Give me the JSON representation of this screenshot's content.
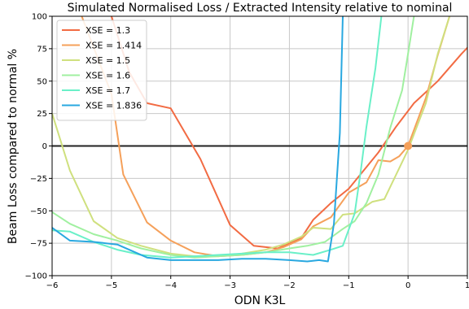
{
  "chart_data": {
    "type": "line",
    "title": "Simulated Normalised Loss / Extracted Intensity relative to nominal",
    "xlabel": "ODN K3L",
    "ylabel": "Beam Loss compared to normal %",
    "xlim": [
      -6,
      1
    ],
    "ylim": [
      -100,
      100
    ],
    "x_ticks": [
      -6,
      -5,
      -4,
      -3,
      -2,
      -1,
      0,
      1
    ],
    "x_tick_labels": [
      "−6",
      "−5",
      "−4",
      "−3",
      "−2",
      "−1",
      "0",
      "1"
    ],
    "y_ticks": [
      -100,
      -75,
      -50,
      -25,
      0,
      25,
      50,
      75,
      100
    ],
    "y_tick_labels": [
      "−100",
      "−75",
      "−50",
      "−25",
      "0",
      "25",
      "50",
      "75",
      "100"
    ],
    "grid": true,
    "legend_position": "top-left",
    "zero_line": 0,
    "marker": {
      "x": 0,
      "y": 0,
      "color": "#f5a05a"
    },
    "series": [
      {
        "name": "XSE = 1.3",
        "color": "#f26b43",
        "points": [
          [
            -5.0,
            100
          ],
          [
            -4.7,
            57
          ],
          [
            -4.4,
            33
          ],
          [
            -4.0,
            29
          ],
          [
            -3.5,
            -10
          ],
          [
            -3.0,
            -61
          ],
          [
            -2.6,
            -77
          ],
          [
            -2.2,
            -79
          ],
          [
            -1.8,
            -71
          ],
          [
            -1.6,
            -57
          ],
          [
            -1.3,
            -44
          ],
          [
            -1.0,
            -33
          ],
          [
            -0.5,
            -5
          ],
          [
            -0.2,
            15
          ],
          [
            0.1,
            33
          ],
          [
            0.5,
            50
          ],
          [
            0.9,
            71
          ],
          [
            1.3,
            90
          ]
        ]
      },
      {
        "name": "XSE = 1.414",
        "color": "#f5a05a",
        "points": [
          [
            -5.5,
            100
          ],
          [
            -5.0,
            40
          ],
          [
            -4.8,
            -22
          ],
          [
            -4.4,
            -59
          ],
          [
            -4.0,
            -73
          ],
          [
            -3.6,
            -82
          ],
          [
            -3.2,
            -85
          ],
          [
            -2.8,
            -84
          ],
          [
            -2.4,
            -82
          ],
          [
            -2.1,
            -78
          ],
          [
            -1.8,
            -72
          ],
          [
            -1.6,
            -62
          ],
          [
            -1.3,
            -55
          ],
          [
            -1.0,
            -36
          ],
          [
            -0.7,
            -28
          ],
          [
            -0.5,
            -11
          ],
          [
            -0.3,
            -12
          ],
          [
            -0.15,
            -8
          ],
          [
            0,
            0
          ],
          [
            0.3,
            37
          ],
          [
            0.5,
            70
          ],
          [
            0.7,
            100
          ]
        ]
      },
      {
        "name": "XSE = 1.5",
        "color": "#cfe07e",
        "points": [
          [
            -6.0,
            25
          ],
          [
            -5.7,
            -19
          ],
          [
            -5.3,
            -58
          ],
          [
            -4.9,
            -71
          ],
          [
            -4.5,
            -77
          ],
          [
            -4.0,
            -83
          ],
          [
            -3.6,
            -85
          ],
          [
            -3.2,
            -85
          ],
          [
            -2.8,
            -83
          ],
          [
            -2.4,
            -80
          ],
          [
            -2.1,
            -76
          ],
          [
            -1.8,
            -70
          ],
          [
            -1.6,
            -63
          ],
          [
            -1.3,
            -64
          ],
          [
            -1.1,
            -53
          ],
          [
            -0.9,
            -52
          ],
          [
            -0.6,
            -43
          ],
          [
            -0.4,
            -41
          ],
          [
            -0.2,
            -22
          ],
          [
            0,
            -3
          ],
          [
            0.3,
            33
          ],
          [
            0.5,
            71
          ],
          [
            0.7,
            100
          ]
        ]
      },
      {
        "name": "XSE = 1.6",
        "color": "#a0f0a0",
        "points": [
          [
            -6.0,
            -51
          ],
          [
            -5.7,
            -60
          ],
          [
            -5.3,
            -68
          ],
          [
            -4.9,
            -73
          ],
          [
            -4.5,
            -79
          ],
          [
            -4.0,
            -84
          ],
          [
            -3.6,
            -86
          ],
          [
            -3.2,
            -85
          ],
          [
            -2.8,
            -84
          ],
          [
            -2.4,
            -82
          ],
          [
            -2.0,
            -79
          ],
          [
            -1.7,
            -77
          ],
          [
            -1.4,
            -74
          ],
          [
            -1.1,
            -64
          ],
          [
            -0.9,
            -58
          ],
          [
            -0.7,
            -44
          ],
          [
            -0.5,
            -22
          ],
          [
            -0.3,
            14
          ],
          [
            -0.1,
            43
          ],
          [
            0,
            71
          ],
          [
            0.1,
            100
          ]
        ]
      },
      {
        "name": "XSE = 1.7",
        "color": "#6af0c8",
        "points": [
          [
            -6.0,
            -65
          ],
          [
            -5.7,
            -66
          ],
          [
            -5.3,
            -74
          ],
          [
            -4.9,
            -80
          ],
          [
            -4.5,
            -84
          ],
          [
            -4.0,
            -86
          ],
          [
            -3.6,
            -85
          ],
          [
            -3.2,
            -84
          ],
          [
            -2.8,
            -83
          ],
          [
            -2.4,
            -82
          ],
          [
            -2.0,
            -82
          ],
          [
            -1.6,
            -84
          ],
          [
            -1.3,
            -80
          ],
          [
            -1.1,
            -77
          ],
          [
            -0.9,
            -52
          ],
          [
            -0.8,
            -20
          ],
          [
            -0.7,
            15
          ],
          [
            -0.55,
            60
          ],
          [
            -0.45,
            100
          ]
        ]
      },
      {
        "name": "XSE = 1.836",
        "color": "#29a8e0",
        "points": [
          [
            -6.0,
            -63
          ],
          [
            -5.7,
            -73
          ],
          [
            -5.3,
            -74
          ],
          [
            -4.9,
            -76
          ],
          [
            -4.4,
            -86
          ],
          [
            -4.0,
            -88
          ],
          [
            -3.6,
            -88
          ],
          [
            -3.2,
            -88
          ],
          [
            -2.8,
            -87
          ],
          [
            -2.4,
            -87
          ],
          [
            -2.0,
            -88
          ],
          [
            -1.7,
            -89
          ],
          [
            -1.5,
            -88
          ],
          [
            -1.35,
            -89
          ],
          [
            -1.25,
            -60
          ],
          [
            -1.15,
            10
          ],
          [
            -1.1,
            100
          ]
        ]
      }
    ]
  }
}
